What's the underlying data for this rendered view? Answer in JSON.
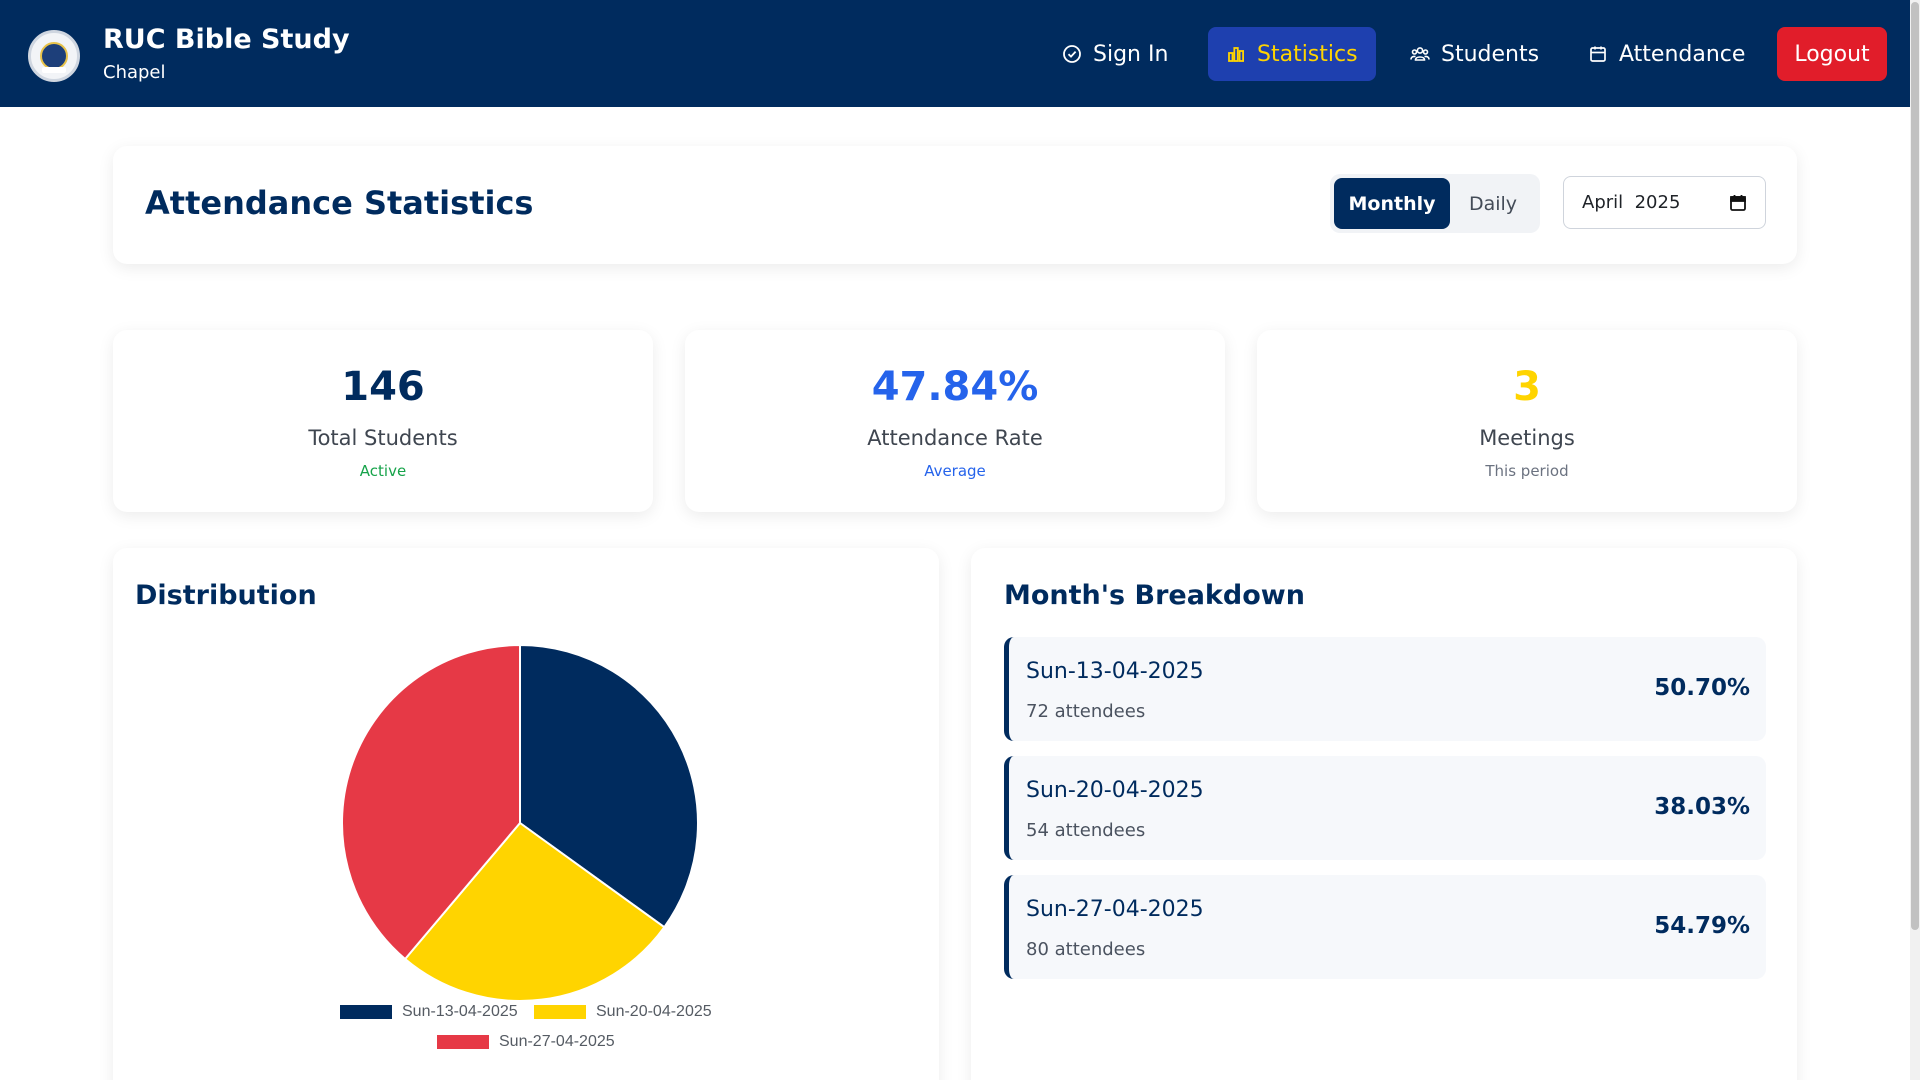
{
  "brand": {
    "title": "RUC Bible Study",
    "subtitle": "Chapel",
    "logo_icon": "chapel-seal-icon"
  },
  "nav": {
    "sign_in": "Sign In",
    "statistics": "Statistics",
    "students": "Students",
    "attendance": "Attendance",
    "logout": "Logout",
    "active_item": "statistics",
    "icons": {
      "sign_in": "check-circle-icon",
      "statistics": "bar-chart-icon",
      "students": "users-icon",
      "attendance": "calendar-icon"
    }
  },
  "header": {
    "title": "Attendance Statistics",
    "toggle": {
      "monthly": "Monthly",
      "daily": "Daily",
      "selected": "Monthly"
    },
    "month_input": {
      "value": "April  2025",
      "icon": "calendar-icon"
    }
  },
  "stats": [
    {
      "value": "146",
      "label": "Total Students",
      "sub": "Active",
      "value_color": "#002b5e",
      "sub_color": "#16a34a"
    },
    {
      "value": "47.84%",
      "label": "Attendance Rate",
      "sub": "Average",
      "value_color": "#2563eb",
      "sub_color": "#2563eb"
    },
    {
      "value": "3",
      "label": "Meetings",
      "sub": "This period",
      "value_color": "#ffd400",
      "sub_color": "#6b7280"
    }
  ],
  "distribution": {
    "title": "Distribution"
  },
  "chart_data": {
    "type": "pie",
    "title": "",
    "labels": [
      "Sun-13-04-2025",
      "Sun-20-04-2025",
      "Sun-27-04-2025"
    ],
    "values": [
      72,
      54,
      80
    ],
    "colors": [
      "#002b5e",
      "#ffd400",
      "#e63946"
    ],
    "legend_position": "bottom"
  },
  "breakdown": {
    "title": "Month's Breakdown",
    "rows": [
      {
        "date": "Sun-13-04-2025",
        "attendees": "72 attendees",
        "percent": "50.70%"
      },
      {
        "date": "Sun-20-04-2025",
        "attendees": "54 attendees",
        "percent": "38.03%"
      },
      {
        "date": "Sun-27-04-2025",
        "attendees": "80 attendees",
        "percent": "54.79%"
      }
    ]
  }
}
